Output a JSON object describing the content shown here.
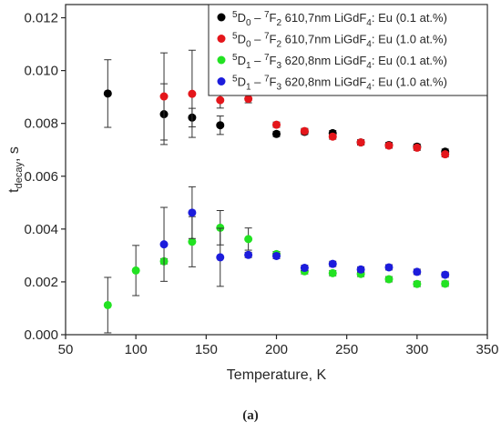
{
  "chart_data": {
    "type": "scatter",
    "xlabel": "Temperature, K",
    "ylabel_main": "t",
    "ylabel_sub": "decay",
    "ylabel_unit": ", s",
    "xlim": [
      50,
      350
    ],
    "ylim": [
      0,
      0.0125
    ],
    "xticks": [
      50,
      100,
      150,
      200,
      250,
      300,
      350
    ],
    "yticks": [
      0,
      0.002,
      0.004,
      0.006,
      0.008,
      0.01,
      0.012
    ],
    "ytick_labels": [
      "0.000",
      "0.002",
      "0.004",
      "0.006",
      "0.008",
      "0.010",
      "0.012"
    ],
    "grid": false,
    "legend_position": "top-right",
    "caption": "(a)",
    "series": [
      {
        "color": "#000000",
        "legend": {
          "sup1": "5",
          "tr1": "D",
          "sub1": "0",
          "dash": " – ",
          "sup2": "7",
          "tr2": "F",
          "sub2": "2",
          "rest1": " 610,7nm LiGdF",
          "sub3": "4",
          "rest2": ": Eu (0.1 at.%)"
        },
        "points": [
          {
            "x": 80,
            "y": 0.00913,
            "err": 0.00128
          },
          {
            "x": 120,
            "y": 0.00835,
            "err": 0.00115
          },
          {
            "x": 140,
            "y": 0.00822,
            "err": 0.00035
          },
          {
            "x": 160,
            "y": 0.00793,
            "err": 0.00035
          },
          {
            "x": 200,
            "y": 0.0076,
            "err": 0.0001
          },
          {
            "x": 220,
            "y": 0.00768,
            "err": 0.0001
          },
          {
            "x": 240,
            "y": 0.00763,
            "err": 0.0001
          },
          {
            "x": 260,
            "y": 0.00728,
            "err": 0.0001
          },
          {
            "x": 280,
            "y": 0.00718,
            "err": 0.0001
          },
          {
            "x": 300,
            "y": 0.00712,
            "err": 0.0001
          },
          {
            "x": 320,
            "y": 0.00693,
            "err": 0.0001
          }
        ]
      },
      {
        "color": "#e4161b",
        "legend": {
          "sup1": "5",
          "tr1": "D",
          "sub1": "0",
          "dash": " – ",
          "sup2": "7",
          "tr2": "F",
          "sub2": "2",
          "rest1": " 610,7nm LiGdF",
          "sub3": "4",
          "rest2": ": Eu (1.0 at.%)"
        },
        "points": [
          {
            "x": 120,
            "y": 0.00902,
            "err": 0.00165
          },
          {
            "x": 140,
            "y": 0.00912,
            "err": 0.00165
          },
          {
            "x": 160,
            "y": 0.00888,
            "err": 0.0003
          },
          {
            "x": 180,
            "y": 0.00893,
            "err": 0.00015
          },
          {
            "x": 200,
            "y": 0.00795,
            "err": 0.0001
          },
          {
            "x": 220,
            "y": 0.00771,
            "err": 0.0001
          },
          {
            "x": 240,
            "y": 0.0075,
            "err": 0.0001
          },
          {
            "x": 260,
            "y": 0.00728,
            "err": 0.0001
          },
          {
            "x": 280,
            "y": 0.00716,
            "err": 0.0001
          },
          {
            "x": 300,
            "y": 0.00708,
            "err": 0.0001
          },
          {
            "x": 320,
            "y": 0.00683,
            "err": 0.0001
          }
        ]
      },
      {
        "color": "#22e222",
        "legend": {
          "sup1": "5",
          "tr1": "D",
          "sub1": "1",
          "dash": " – ",
          "sup2": "7",
          "tr2": "F",
          "sub2": "3",
          "rest1": " 620,8nm LiGdF",
          "sub3": "4",
          "rest2": ": Eu (0.1 at.%)"
        },
        "points": [
          {
            "x": 80,
            "y": 0.00112,
            "err": 0.00105
          },
          {
            "x": 100,
            "y": 0.00243,
            "err": 0.00095
          },
          {
            "x": 120,
            "y": 0.00278,
            "err": 0.0001
          },
          {
            "x": 140,
            "y": 0.00352,
            "err": 0.00095
          },
          {
            "x": 160,
            "y": 0.00405,
            "err": 0.00065
          },
          {
            "x": 180,
            "y": 0.00362,
            "err": 0.00042
          },
          {
            "x": 200,
            "y": 0.00305,
            "err": 0.0001
          },
          {
            "x": 220,
            "y": 0.0024,
            "err": 0.0001
          },
          {
            "x": 240,
            "y": 0.00233,
            "err": 0.0001
          },
          {
            "x": 260,
            "y": 0.0023,
            "err": 0.0001
          },
          {
            "x": 280,
            "y": 0.0021,
            "err": 0.0001
          },
          {
            "x": 300,
            "y": 0.00192,
            "err": 0.0001
          },
          {
            "x": 320,
            "y": 0.00193,
            "err": 0.0001
          }
        ]
      },
      {
        "color": "#1c1cdc",
        "legend": {
          "sup1": "5",
          "tr1": "D",
          "sub1": "1",
          "dash": " – ",
          "sup2": "7",
          "tr2": "F",
          "sub2": "3",
          "rest1": " 620,8nm LiGdF",
          "sub3": "4",
          "rest2": ": Eu (1.0 at.%)"
        },
        "points": [
          {
            "x": 120,
            "y": 0.00342,
            "err": 0.0014
          },
          {
            "x": 140,
            "y": 0.00462,
            "err": 0.00098
          },
          {
            "x": 160,
            "y": 0.00293,
            "err": 0.0011
          },
          {
            "x": 180,
            "y": 0.00302,
            "err": 0.0001
          },
          {
            "x": 200,
            "y": 0.00298,
            "err": 0.0001
          },
          {
            "x": 220,
            "y": 0.00253,
            "err": 0.0001
          },
          {
            "x": 240,
            "y": 0.00268,
            "err": 0.0001
          },
          {
            "x": 260,
            "y": 0.00247,
            "err": 0.0001
          },
          {
            "x": 280,
            "y": 0.00255,
            "err": 0.0001
          },
          {
            "x": 300,
            "y": 0.00238,
            "err": 0.0001
          },
          {
            "x": 320,
            "y": 0.00227,
            "err": 0.0001
          }
        ]
      }
    ]
  }
}
